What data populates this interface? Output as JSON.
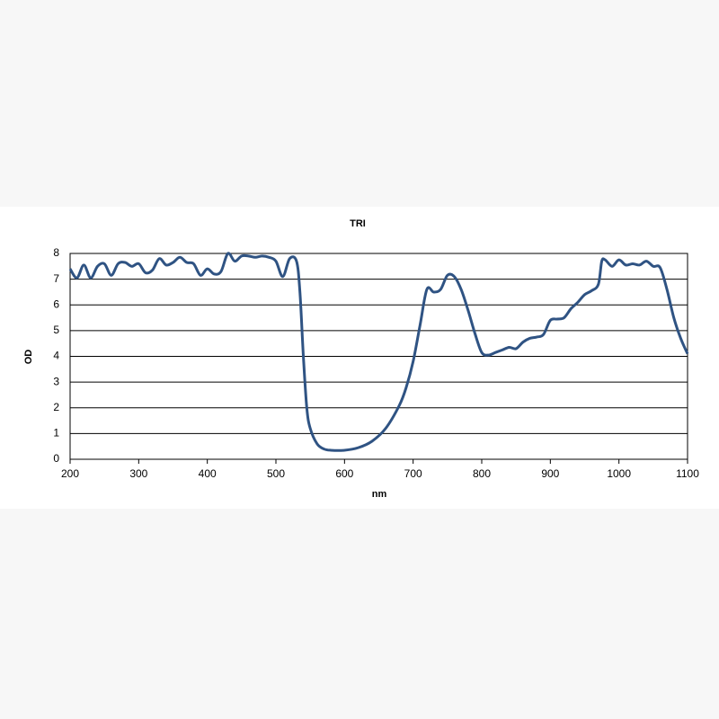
{
  "chart_data": {
    "type": "line",
    "title": "TRI",
    "xlabel": "nm",
    "ylabel": "OD",
    "x": [
      200,
      210,
      220,
      230,
      240,
      250,
      260,
      270,
      280,
      290,
      300,
      310,
      320,
      330,
      340,
      350,
      360,
      370,
      380,
      390,
      400,
      410,
      420,
      430,
      440,
      450,
      460,
      470,
      480,
      490,
      500,
      510,
      520,
      530,
      535,
      540,
      545,
      550,
      560,
      570,
      580,
      600,
      620,
      640,
      660,
      680,
      690,
      700,
      710,
      720,
      730,
      740,
      750,
      760,
      770,
      780,
      790,
      800,
      810,
      820,
      830,
      840,
      850,
      860,
      870,
      880,
      890,
      900,
      910,
      920,
      930,
      940,
      950,
      960,
      970,
      975,
      980,
      990,
      1000,
      1010,
      1020,
      1030,
      1040,
      1050,
      1060,
      1070,
      1080,
      1090,
      1100
    ],
    "series": [
      {
        "name": "TRI",
        "color": "#2f5383",
        "values": [
          7.4,
          7.05,
          7.55,
          7.05,
          7.5,
          7.6,
          7.15,
          7.6,
          7.65,
          7.5,
          7.6,
          7.25,
          7.35,
          7.8,
          7.55,
          7.65,
          7.85,
          7.65,
          7.6,
          7.15,
          7.4,
          7.2,
          7.3,
          8.0,
          7.7,
          7.9,
          7.9,
          7.85,
          7.9,
          7.85,
          7.7,
          7.1,
          7.8,
          7.7,
          6.5,
          4.0,
          2.0,
          1.2,
          0.6,
          0.4,
          0.35,
          0.35,
          0.45,
          0.7,
          1.2,
          2.1,
          2.8,
          3.8,
          5.2,
          6.6,
          6.5,
          6.6,
          7.15,
          7.1,
          6.6,
          5.8,
          4.9,
          4.15,
          4.05,
          4.15,
          4.25,
          4.35,
          4.3,
          4.55,
          4.7,
          4.75,
          4.85,
          5.4,
          5.45,
          5.5,
          5.85,
          6.1,
          6.4,
          6.55,
          6.8,
          7.7,
          7.75,
          7.5,
          7.75,
          7.55,
          7.6,
          7.55,
          7.7,
          7.5,
          7.45,
          6.6,
          5.5,
          4.7,
          4.1
        ]
      }
    ],
    "xlim": [
      200,
      1100
    ],
    "xticks": [
      200,
      300,
      400,
      500,
      600,
      700,
      800,
      900,
      1000,
      1100
    ],
    "ylim": [
      0,
      8
    ],
    "yticks": [
      0,
      1,
      2,
      3,
      4,
      5,
      6,
      7,
      8
    ],
    "grid": true
  }
}
